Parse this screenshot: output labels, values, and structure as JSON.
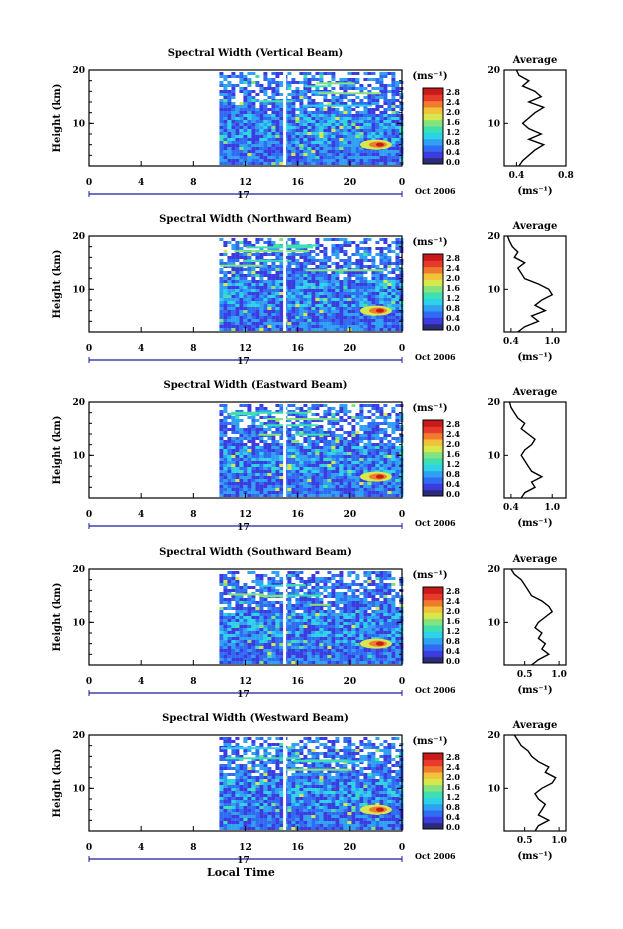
{
  "x_axis_ticks": [
    "0",
    "4",
    "8",
    "12",
    "16",
    "20",
    "0"
  ],
  "date_row": {
    "day": "17",
    "month_year": "Oct 2006"
  },
  "bottom_label": "Local Time",
  "y_label": "Height (km)",
  "y_ticks": [
    "20",
    "10"
  ],
  "colorbar": {
    "unit": "(ms⁻¹)",
    "ticks": [
      "2.8",
      "2.4",
      "2.0",
      "1.6",
      "1.2",
      "0.8",
      "0.4",
      "0.0"
    ],
    "colors": [
      "#2b2b7a",
      "#3b3bdf",
      "#2f6cf2",
      "#2fa0f2",
      "#2ed2e8",
      "#3de0b0",
      "#86e27c",
      "#d7e84c",
      "#f2c23a",
      "#f07a2e",
      "#e83a2a",
      "#c81a1a"
    ]
  },
  "avg_title": "Average",
  "avg_unit": "(ms⁻¹)",
  "colors": {
    "bg_low": "#3a56e0",
    "bg_mid": "#4a7ff0",
    "white_gap": "#ffffff"
  },
  "chart_data": [
    {
      "type": "heatmap",
      "title": "Spectral Width (Vertical Beam)",
      "xlabel": "",
      "ylabel": "Height (km)",
      "xlim": [
        0,
        24
      ],
      "ylim": [
        2,
        20
      ],
      "data_start_hour": 10,
      "gap_hour": 15,
      "hotspot": {
        "hour": 22,
        "height_km": 6,
        "value": 2.4
      },
      "average_profile": {
        "xticks": [
          "0.4",
          "0.8"
        ],
        "xlim": [
          0.3,
          0.8
        ],
        "heights": [
          2,
          3,
          4,
          5,
          6,
          7,
          8,
          9,
          10,
          11,
          12,
          13,
          14,
          15,
          16,
          17,
          18,
          19,
          20
        ],
        "values": [
          0.42,
          0.45,
          0.5,
          0.55,
          0.62,
          0.5,
          0.6,
          0.5,
          0.45,
          0.5,
          0.55,
          0.62,
          0.5,
          0.6,
          0.55,
          0.45,
          0.5,
          0.42,
          0.4
        ]
      }
    },
    {
      "type": "heatmap",
      "title": "Spectral Width (Northward Beam)",
      "xlabel": "",
      "ylabel": "Height (km)",
      "xlim": [
        0,
        24
      ],
      "ylim": [
        2,
        20
      ],
      "data_start_hour": 10,
      "gap_hour": 15,
      "hotspot": {
        "hour": 22,
        "height_km": 6,
        "value": 2.8
      },
      "average_profile": {
        "xticks": [
          "0.4",
          "1.0"
        ],
        "xlim": [
          0.3,
          1.2
        ],
        "heights": [
          2,
          3,
          4,
          5,
          6,
          7,
          8,
          9,
          10,
          11,
          12,
          13,
          14,
          15,
          16,
          17,
          18,
          19,
          20
        ],
        "values": [
          0.5,
          0.6,
          0.8,
          0.7,
          0.9,
          0.75,
          0.85,
          1.0,
          0.95,
          0.8,
          0.6,
          0.55,
          0.5,
          0.6,
          0.45,
          0.5,
          0.42,
          0.38,
          0.35
        ]
      }
    },
    {
      "type": "heatmap",
      "title": "Spectral Width (Eastward Beam)",
      "xlabel": "",
      "ylabel": "Height (km)",
      "xlim": [
        0,
        24
      ],
      "ylim": [
        2,
        20
      ],
      "data_start_hour": 10,
      "gap_hour": 15,
      "hotspot": {
        "hour": 22,
        "height_km": 6,
        "value": 2.4
      },
      "average_profile": {
        "xticks": [
          "0.4",
          "1.0"
        ],
        "xlim": [
          0.3,
          1.2
        ],
        "heights": [
          2,
          3,
          4,
          5,
          6,
          7,
          8,
          9,
          10,
          11,
          12,
          13,
          14,
          15,
          16,
          17,
          18,
          19,
          20
        ],
        "values": [
          0.55,
          0.6,
          0.75,
          0.7,
          0.85,
          0.7,
          0.65,
          0.6,
          0.55,
          0.6,
          0.7,
          0.75,
          0.65,
          0.55,
          0.6,
          0.5,
          0.45,
          0.4,
          0.38
        ]
      }
    },
    {
      "type": "heatmap",
      "title": "Spectral Width (Southward Beam)",
      "xlabel": "",
      "ylabel": "Height (km)",
      "xlim": [
        0,
        24
      ],
      "ylim": [
        2,
        20
      ],
      "data_start_hour": 10,
      "gap_hour": 15,
      "hotspot": {
        "hour": 22,
        "height_km": 6,
        "value": 2.4
      },
      "average_profile": {
        "xticks": [
          "0.5",
          "1.0"
        ],
        "xlim": [
          0.2,
          1.1
        ],
        "heights": [
          2,
          3,
          4,
          5,
          6,
          7,
          8,
          9,
          10,
          11,
          12,
          13,
          14,
          15,
          16,
          17,
          18,
          19,
          20
        ],
        "values": [
          0.6,
          0.7,
          0.85,
          0.75,
          0.8,
          0.7,
          0.75,
          0.65,
          0.7,
          0.8,
          0.9,
          0.85,
          0.75,
          0.6,
          0.55,
          0.5,
          0.45,
          0.35,
          0.3
        ]
      }
    },
    {
      "type": "heatmap",
      "title": "Spectral Width (Westward Beam)",
      "xlabel": "",
      "ylabel": "Height (km)",
      "xlim": [
        0,
        24
      ],
      "ylim": [
        2,
        20
      ],
      "data_start_hour": 10,
      "gap_hour": 15,
      "hotspot": {
        "hour": 22,
        "height_km": 6,
        "value": 2.4
      },
      "average_profile": {
        "xticks": [
          "0.5",
          "1.0"
        ],
        "xlim": [
          0.2,
          1.1
        ],
        "heights": [
          2,
          3,
          4,
          5,
          6,
          7,
          8,
          9,
          10,
          11,
          12,
          13,
          14,
          15,
          16,
          17,
          18,
          19,
          20
        ],
        "values": [
          0.65,
          0.7,
          0.85,
          0.7,
          0.75,
          0.8,
          0.7,
          0.65,
          0.75,
          0.9,
          0.95,
          0.8,
          0.85,
          0.7,
          0.6,
          0.55,
          0.45,
          0.4,
          0.35
        ]
      }
    }
  ]
}
